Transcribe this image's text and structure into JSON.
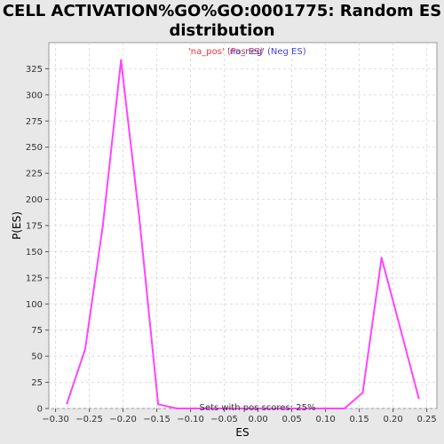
{
  "chart_data": {
    "type": "line",
    "title_line1": "CELL ACTIVATION%GO%GO:0001775: Random ES",
    "title_line2": "distribution",
    "xlabel": "ES",
    "ylabel": "P(ES)",
    "xlim": [
      -0.31,
      0.265
    ],
    "ylim": [
      0,
      350
    ],
    "xticks": [
      -0.3,
      -0.25,
      -0.2,
      -0.15,
      -0.1,
      -0.05,
      0.0,
      0.05,
      0.1,
      0.15,
      0.2,
      0.25
    ],
    "xtick_labels": [
      "−0.30",
      "−0.25",
      "−0.20",
      "−0.15",
      "−0.10",
      "−0.05",
      "0.00",
      "0.05",
      "0.10",
      "0.15",
      "0.20",
      "0.25"
    ],
    "yticks": [
      0,
      25,
      50,
      75,
      100,
      125,
      150,
      175,
      200,
      225,
      250,
      275,
      300,
      325
    ],
    "ytick_labels": [
      "0",
      "25",
      "50",
      "75",
      "100",
      "125",
      "150",
      "175",
      "200",
      "225",
      "250",
      "275",
      "300",
      "325"
    ],
    "grid": true,
    "series": [
      {
        "color": "#ff44ff",
        "x": [
          -0.283,
          -0.256,
          -0.23,
          -0.203,
          -0.176,
          -0.148,
          -0.12,
          -0.093,
          -0.066,
          -0.039,
          -0.012,
          0.015,
          0.043,
          0.07,
          0.097,
          0.128,
          0.155,
          0.183,
          0.211,
          0.238
        ],
        "y": [
          5,
          57,
          175,
          333,
          183,
          4,
          0,
          0,
          0,
          0,
          0,
          0,
          0,
          0,
          0,
          0,
          15,
          144,
          76,
          10
        ]
      }
    ],
    "legend": [
      {
        "text": "'na_pos' (Pos ES)",
        "color": "#ee3333"
      },
      {
        "text": "'na_neg' (Neg ES)",
        "color": "#4444dd"
      }
    ],
    "annotation": "Sets with pos scores: 25%"
  }
}
